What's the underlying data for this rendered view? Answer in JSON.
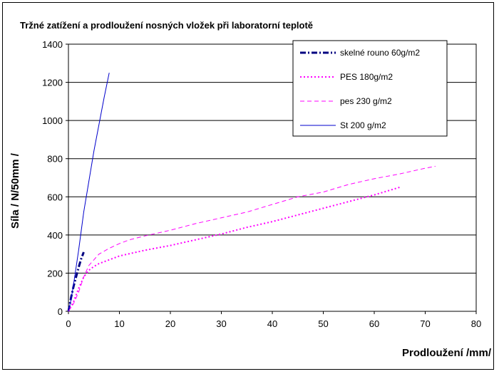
{
  "chart_data": {
    "type": "line",
    "title": "Tržné zatížení a prodloužení nosných vložek při laboratorní teplotě",
    "xlabel": "Prodloužení /mm/",
    "ylabel": "Síla / N/50mm /",
    "xlim": [
      0,
      80
    ],
    "ylim": [
      0,
      1400
    ],
    "xticks": [
      "0",
      "10",
      "20",
      "30",
      "40",
      "50",
      "60",
      "70",
      "80"
    ],
    "yticks": [
      "0",
      "200",
      "400",
      "600",
      "800",
      "1000",
      "1200",
      "1400"
    ],
    "grid": "horizontal",
    "legend_position": "top-right",
    "series": [
      {
        "name": "skelné rouno 60g/m2",
        "color": "#000080",
        "style": "dashdot",
        "x": [
          0,
          0.5,
          1.0,
          1.5,
          2.0,
          2.5,
          3.0
        ],
        "y": [
          0,
          70,
          130,
          180,
          230,
          275,
          310
        ]
      },
      {
        "name": "PES 180g/m2",
        "color": "#ff00ff",
        "style": "dotted",
        "x": [
          0,
          1,
          2,
          3,
          4,
          5,
          6,
          8,
          10,
          15,
          20,
          25,
          30,
          35,
          40,
          45,
          50,
          55,
          60,
          65
        ],
        "y": [
          0,
          50,
          120,
          180,
          215,
          235,
          250,
          270,
          290,
          320,
          345,
          375,
          405,
          440,
          470,
          505,
          540,
          575,
          610,
          650
        ]
      },
      {
        "name": "pes 230 g/m2",
        "color": "#ff00ff",
        "style": "dashed",
        "x": [
          0,
          1,
          2,
          3,
          4,
          5,
          6,
          8,
          10,
          12,
          15,
          20,
          25,
          30,
          35,
          40,
          45,
          50,
          55,
          60,
          65,
          70,
          72
        ],
        "y": [
          0,
          40,
          100,
          180,
          240,
          270,
          300,
          330,
          355,
          375,
          395,
          425,
          460,
          490,
          520,
          560,
          600,
          625,
          665,
          695,
          720,
          750,
          760
        ]
      },
      {
        "name": "St 200 g/m2",
        "color": "#0000cc",
        "style": "solid",
        "x": [
          0,
          0.5,
          1.0,
          1.5,
          2.0,
          2.5,
          3.0,
          4.0,
          5.0,
          6.0,
          7.0,
          8.0
        ],
        "y": [
          0,
          60,
          140,
          230,
          320,
          420,
          520,
          680,
          840,
          980,
          1120,
          1250
        ]
      }
    ]
  }
}
